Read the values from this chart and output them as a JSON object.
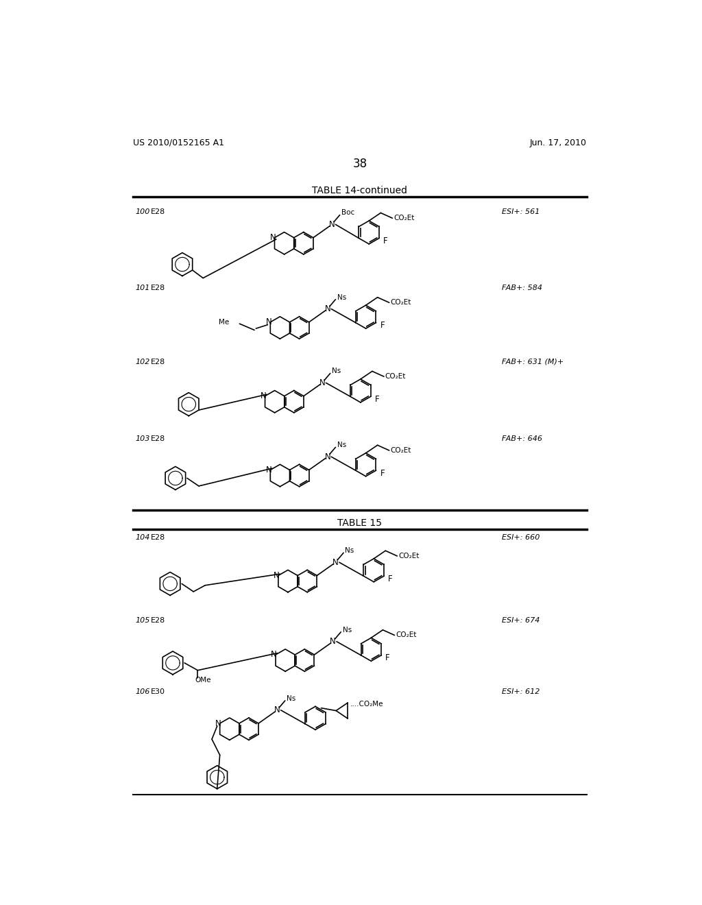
{
  "background_color": "#ffffff",
  "header_left": "US 2010/0152165 A1",
  "header_right": "Jun. 17, 2010",
  "page_number": "38",
  "table14_title": "TABLE 14-continued",
  "table15_title": "TABLE 15",
  "entries": [
    {
      "num": "100",
      "method": "E28",
      "ms": "ESI+: 561"
    },
    {
      "num": "101",
      "method": "E28",
      "ms": "FAB+: 584"
    },
    {
      "num": "102",
      "method": "E28",
      "ms": "FAB+: 631 (M)+"
    },
    {
      "num": "103",
      "method": "E28",
      "ms": "FAB+: 646"
    },
    {
      "num": "104",
      "method": "E28",
      "ms": "ESI+: 660"
    },
    {
      "num": "105",
      "method": "E28",
      "ms": "ESI+: 674"
    },
    {
      "num": "106",
      "method": "E30",
      "ms": "ESI+: 612"
    }
  ]
}
